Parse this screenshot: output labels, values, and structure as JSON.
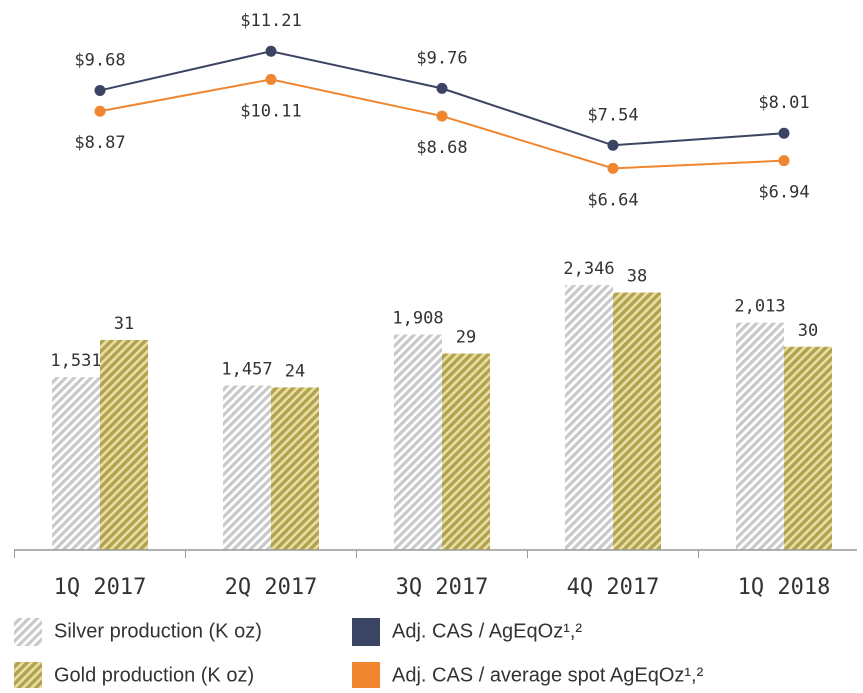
{
  "chart_data": {
    "type": "bar",
    "categories": [
      "1Q 2017",
      "2Q 2017",
      "3Q 2017",
      "4Q 2017",
      "1Q 2018"
    ],
    "ylim": [
      0,
      2400
    ],
    "y2lim": [
      0,
      40
    ],
    "y3lim": [
      4,
      12
    ],
    "series": [
      {
        "name": "Silver production (K oz)",
        "type": "bar",
        "axis": "y",
        "color": "#c9c9c9",
        "values": [
          1531,
          1457,
          1908,
          2346,
          2013
        ],
        "value_labels": [
          "1,531",
          "1,457",
          "1,908",
          "2,346",
          "2,013"
        ]
      },
      {
        "name": "Gold production (K oz)",
        "type": "bar",
        "axis": "y2",
        "color": "#b3a24c",
        "values": [
          31,
          24,
          29,
          38,
          30
        ]
      },
      {
        "name": "Adj. CAS / AgEqOz¹,²",
        "type": "line",
        "axis": "y3",
        "color": "#3b4463",
        "values": [
          9.68,
          11.21,
          9.76,
          7.54,
          8.01
        ],
        "value_labels": [
          "$9.68",
          "$11.21",
          "$9.76",
          "$7.54",
          "$8.01"
        ]
      },
      {
        "name": "Adj. CAS / average spot AgEqOz¹,²",
        "type": "line",
        "axis": "y3",
        "color": "#f0862f",
        "values": [
          8.87,
          10.11,
          8.68,
          6.64,
          6.94
        ],
        "value_labels": [
          "$8.87",
          "$10.11",
          "$8.68",
          "$6.64",
          "$6.94"
        ]
      }
    ]
  }
}
